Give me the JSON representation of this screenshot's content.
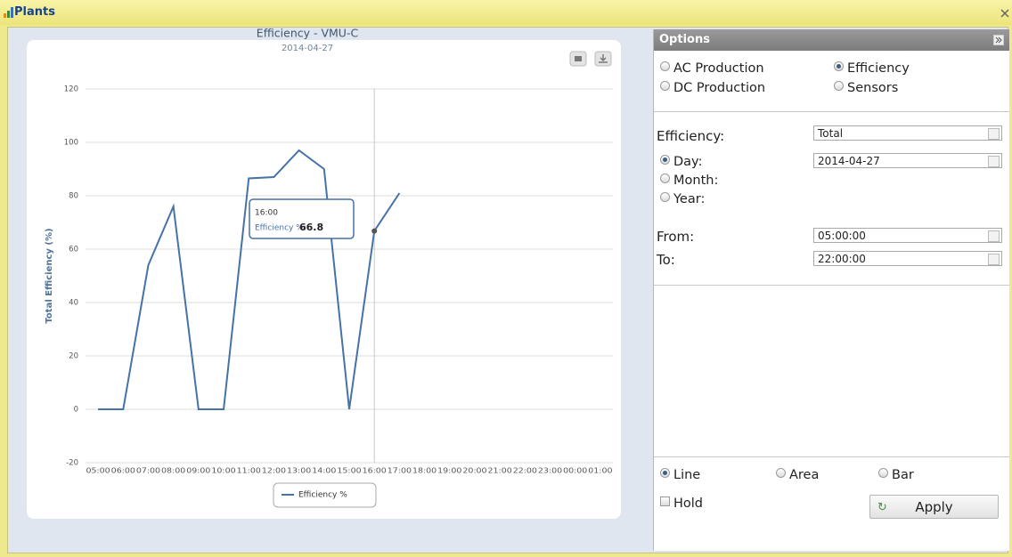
{
  "window": {
    "title": "Plants"
  },
  "chart_data": {
    "type": "line",
    "title": "Efficiency - VMU-C",
    "subtitle": "2014-04-27",
    "y_axis_title": "Total Efficiency (%)",
    "categories": [
      "05:00",
      "06:00",
      "07:00",
      "08:00",
      "09:00",
      "10:00",
      "11:00",
      "12:00",
      "13:00",
      "14:00",
      "15:00",
      "16:00",
      "17:00",
      "18:00",
      "19:00",
      "20:00",
      "21:00",
      "22:00",
      "23:00",
      "00:00",
      "01:00"
    ],
    "series": [
      {
        "name": "Efficiency %",
        "color": "#4572a7",
        "values": [
          0,
          0,
          54,
          76,
          0,
          0,
          86.5,
          87,
          97,
          90,
          0,
          66.8,
          81,
          null,
          null,
          null,
          null,
          null,
          null,
          null,
          null
        ]
      }
    ],
    "ylim": [
      -20,
      120
    ],
    "yticks": [
      -20,
      0,
      20,
      40,
      60,
      80,
      100,
      120
    ],
    "grid": true,
    "legend": "bottom",
    "tooltip": {
      "label": "Efficiency %:"
    }
  },
  "options": {
    "title": "Options",
    "modes": [
      {
        "label": "AC Production",
        "checked": false
      },
      {
        "label": "Efficiency",
        "checked": true
      },
      {
        "label": "DC Production",
        "checked": false
      },
      {
        "label": "Sensors",
        "checked": false
      }
    ],
    "efficiency_label": "Efficiency:",
    "efficiency_select": "Total",
    "periods": [
      {
        "label": "Day:",
        "checked": true
      },
      {
        "label": "Month:",
        "checked": false
      },
      {
        "label": "Year:",
        "checked": false
      }
    ],
    "date": "2014-04-27",
    "from_label": "From:",
    "from": "05:00:00",
    "to_label": "To:",
    "to": "22:00:00",
    "chart_types": [
      {
        "label": "Line",
        "checked": true
      },
      {
        "label": "Area",
        "checked": false
      },
      {
        "label": "Bar",
        "checked": false
      }
    ],
    "hold": {
      "label": "Hold",
      "checked": false
    },
    "apply": "Apply"
  }
}
